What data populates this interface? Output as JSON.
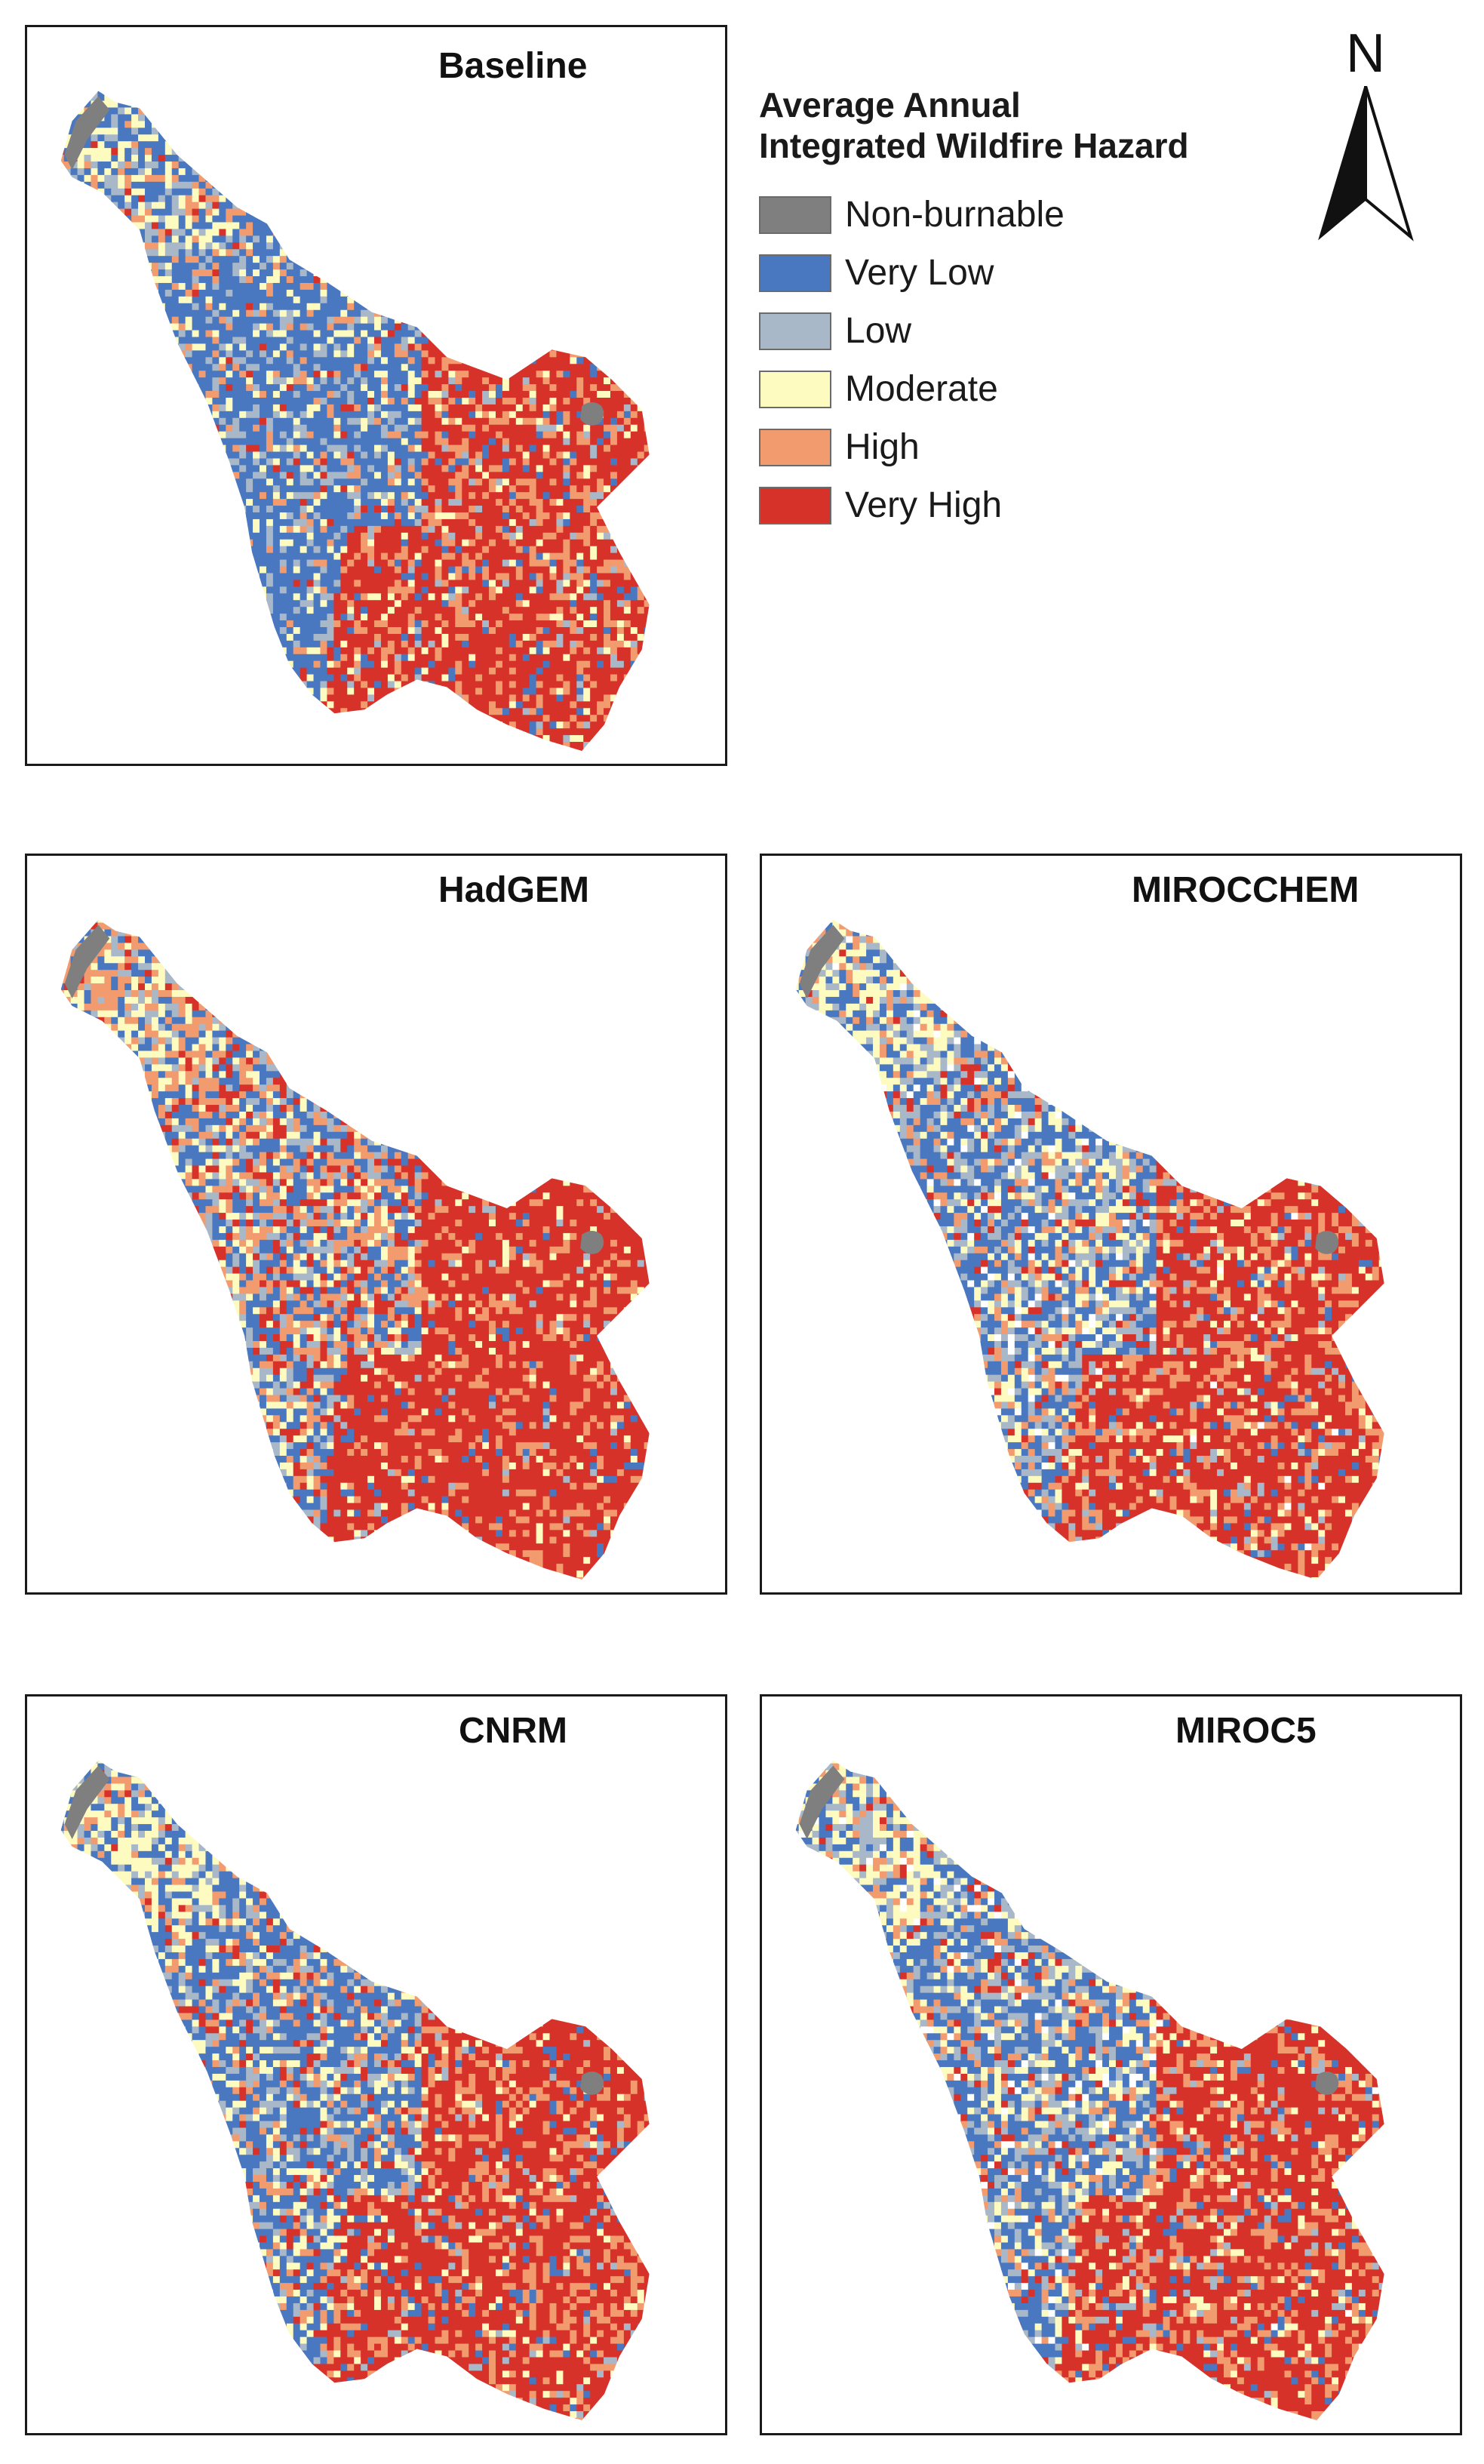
{
  "legend": {
    "title_line1": "Average Annual",
    "title_line2": "Integrated Wildfire Hazard",
    "items": [
      {
        "label": "Non-burnable",
        "color": "#7f7f7f"
      },
      {
        "label": "Very Low",
        "color": "#4a78c0"
      },
      {
        "label": "Low",
        "color": "#a8b8c8"
      },
      {
        "label": "Moderate",
        "color": "#fdfbc0"
      },
      {
        "label": "High",
        "color": "#f29b6e"
      },
      {
        "label": "Very High",
        "color": "#d7322a"
      }
    ]
  },
  "north_arrow": {
    "letter": "N"
  },
  "panels": [
    {
      "title": "Baseline"
    },
    {
      "title": "HadGEM"
    },
    {
      "title": "MIROCCHEM"
    },
    {
      "title": "CNRM"
    },
    {
      "title": "MIROC5"
    }
  ]
}
